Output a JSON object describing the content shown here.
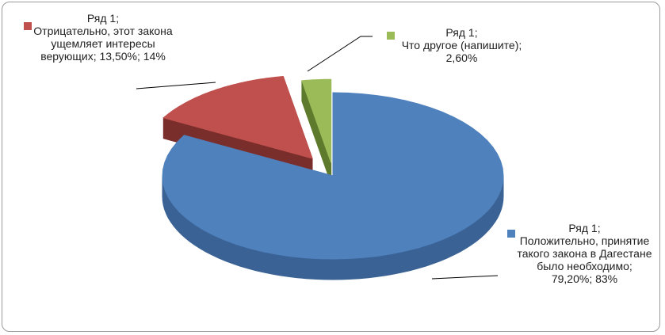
{
  "chart_data": {
    "type": "pie3d",
    "series_name": "Ряд 1",
    "separator": ";",
    "categories": [
      "Положительно, принятие такого закона в Дагестане было необходимо",
      "Отрицательно, этот закона ущемляет интересы верующих",
      "Что другое (напишите)"
    ],
    "values": [
      79.2,
      13.5,
      2.6
    ],
    "value_labels": [
      "79,20%",
      "13,50%",
      "2,60%"
    ],
    "percents": [
      {
        "value": 83,
        "label": "83%"
      },
      {
        "value": 14,
        "label": "14%"
      },
      null
    ],
    "colors": [
      "#4f81bd",
      "#c0504d",
      "#9bbb59"
    ],
    "side_colors": [
      "#3a6294",
      "#7a2e2c",
      "#5e7a2c"
    ]
  }
}
